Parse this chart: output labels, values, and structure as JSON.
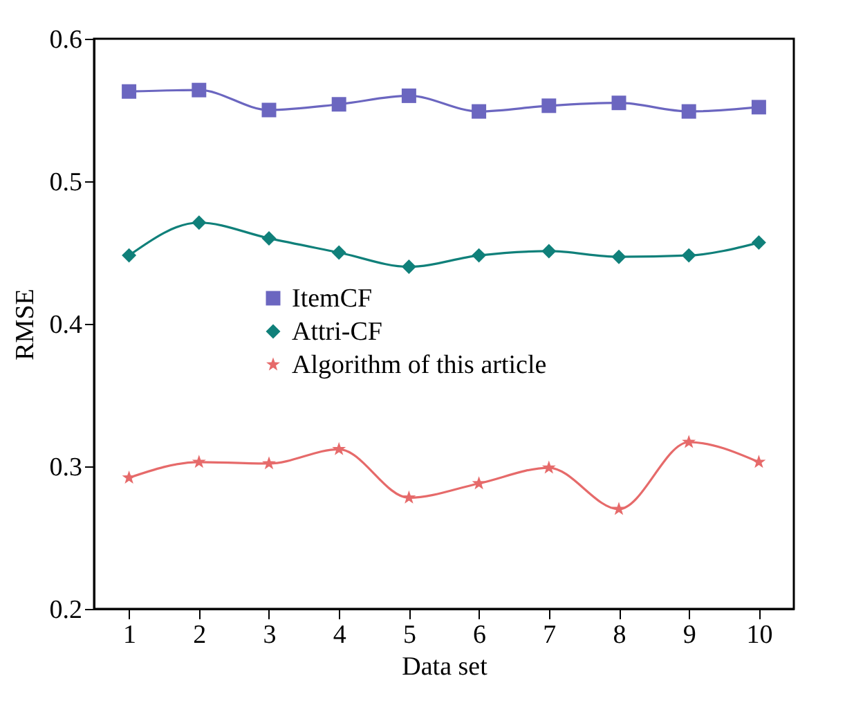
{
  "chart_data": {
    "type": "line",
    "xlabel": "Data set",
    "ylabel": "RMSE",
    "categories": [
      "1",
      "2",
      "3",
      "4",
      "5",
      "6",
      "7",
      "8",
      "9",
      "10"
    ],
    "series": [
      {
        "name": "ItemCF",
        "color": "#6b66c0",
        "marker": "square",
        "values": [
          0.563,
          0.564,
          0.55,
          0.554,
          0.56,
          0.549,
          0.553,
          0.555,
          0.549,
          0.552
        ]
      },
      {
        "name": "Attri-CF",
        "color": "#10807a",
        "marker": "diamond",
        "values": [
          0.448,
          0.471,
          0.46,
          0.45,
          0.44,
          0.448,
          0.451,
          0.447,
          0.448,
          0.457
        ]
      },
      {
        "name": "Algorithm of this article",
        "color": "#e66a6a",
        "marker": "star",
        "values": [
          0.292,
          0.303,
          0.302,
          0.312,
          0.278,
          0.288,
          0.299,
          0.27,
          0.317,
          0.303
        ]
      }
    ],
    "ylim": [
      0.2,
      0.6
    ],
    "yticks": [
      0.2,
      0.3,
      0.4,
      0.5,
      0.6
    ],
    "grid": false,
    "legend": "left",
    "line_style": "solid"
  }
}
